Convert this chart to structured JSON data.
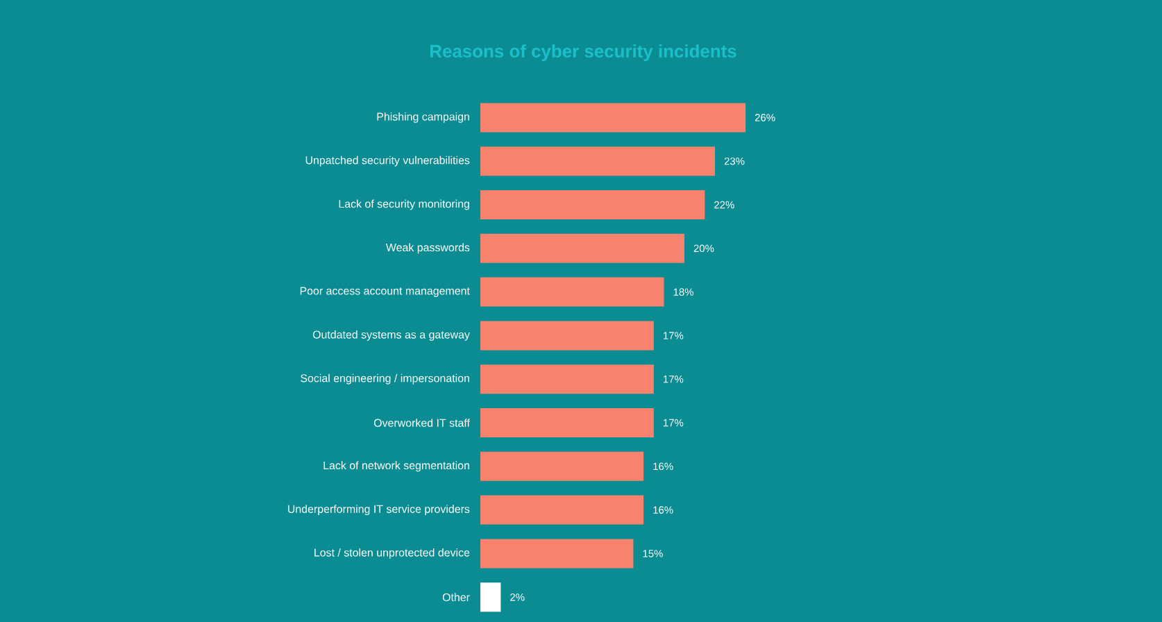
{
  "chart_data": {
    "type": "bar",
    "orientation": "horizontal",
    "title": "Reasons of cyber security incidents",
    "categories": [
      "Phishing campaign",
      "Unpatched security vulnerabilities",
      "Lack of security monitoring",
      "Weak passwords",
      "Poor access account management",
      "Outdated systems as a gateway",
      "Social engineering / impersonation",
      "Overworked IT staff",
      "Lack of network segmentation",
      "Underperforming IT service providers",
      "Lost / stolen unprotected device",
      "Other"
    ],
    "values": [
      26,
      23,
      22,
      20,
      18,
      17,
      17,
      17,
      16,
      16,
      15,
      2
    ],
    "value_labels": [
      "26%",
      "23%",
      "22%",
      "20%",
      "18%",
      "17%",
      "17%",
      "17%",
      "16%",
      "16%",
      "15%",
      "2%"
    ],
    "colors": [
      "#f7836f",
      "#f7836f",
      "#f7836f",
      "#f7836f",
      "#f7836f",
      "#f7836f",
      "#f7836f",
      "#f7836f",
      "#f7836f",
      "#f7836f",
      "#f7836f",
      "#ffffff"
    ]
  }
}
